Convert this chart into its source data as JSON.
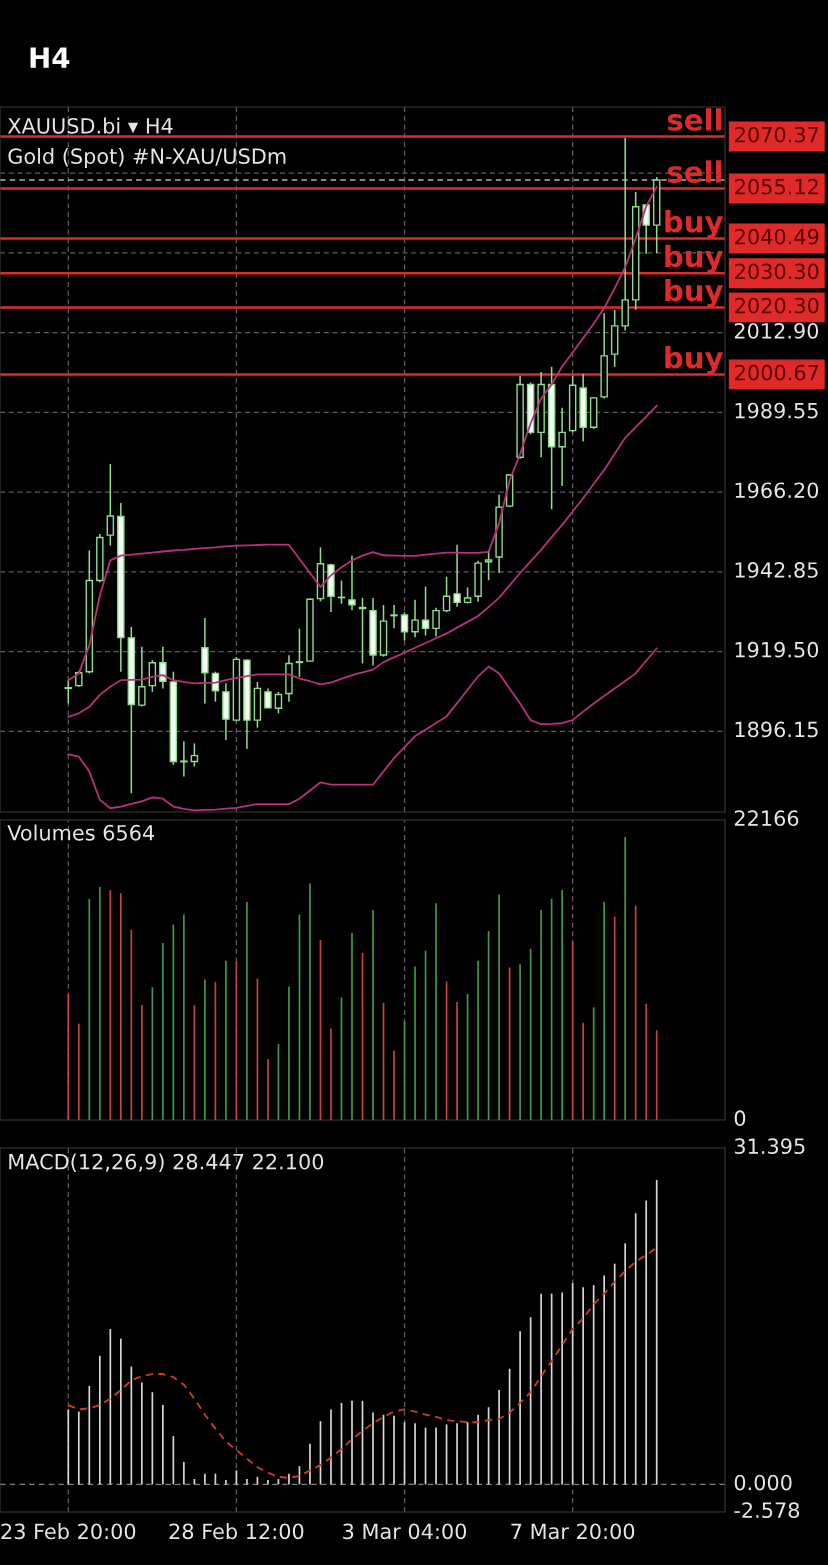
{
  "chart_data": [
    {
      "type": "candlestick",
      "title": "XAUUSD.bi ▾ H4",
      "subtitle": "Gold (Spot) #N-XAU/USDm",
      "annotations": [
        "H4",
        "2070.37",
        "2055.12",
        "2040.49",
        "2030.30",
        "2020.30",
        "2000.67"
      ],
      "categories": [
        null,
        null,
        null,
        null,
        null,
        null,
        null,
        null,
        null,
        null,
        null,
        null,
        null,
        null,
        null,
        null,
        null,
        null,
        null,
        null,
        null,
        null,
        null,
        null,
        null,
        null,
        null,
        null,
        null,
        null,
        null,
        null,
        null,
        null,
        null,
        null,
        null,
        null,
        null,
        null,
        null,
        null,
        null,
        null,
        null,
        null,
        null,
        null,
        null,
        null,
        null,
        null,
        null,
        null,
        null,
        null,
        null
      ],
      "ohlc": [
        [
          1908.7,
          1911.1,
          1904.3,
          1908.9
        ],
        [
          1909.5,
          1913.8,
          1909.2,
          1913.3
        ],
        [
          1913.6,
          1949.1,
          1913.1,
          1940.3
        ],
        [
          1940.3,
          1953.9,
          1939.8,
          1952.9
        ],
        [
          1953.6,
          1974.4,
          1950.5,
          1959.2
        ],
        [
          1959.1,
          1963.0,
          1913.6,
          1923.6
        ],
        [
          1923.5,
          1926.7,
          1878.0,
          1904.0
        ],
        [
          1903.8,
          1920.9,
          1903.4,
          1909.2
        ],
        [
          1909.5,
          1917.0,
          1907.7,
          1916.2
        ],
        [
          1916.2,
          1920.9,
          1908.7,
          1910.8
        ],
        [
          1910.6,
          1913.6,
          1886.3,
          1887.3
        ],
        [
          1887.4,
          1893.2,
          1882.9,
          1887.2
        ],
        [
          1887.3,
          1892.6,
          1885.8,
          1889.0
        ],
        [
          1920.6,
          1929.3,
          1904.3,
          1913.3
        ],
        [
          1913.1,
          1913.6,
          1904.8,
          1908.0
        ],
        [
          1907.7,
          1910.2,
          1893.6,
          1899.7
        ],
        [
          1899.4,
          1917.9,
          1899.0,
          1917.2
        ],
        [
          1917.0,
          1917.2,
          1891.0,
          1899.4
        ],
        [
          1899.4,
          1910.6,
          1897.2,
          1908.7
        ],
        [
          1907.7,
          1908.7,
          1902.9,
          1903.0
        ],
        [
          1902.9,
          1907.7,
          1901.4,
          1906.9
        ],
        [
          1907.2,
          1918.4,
          1904.8,
          1916.0
        ],
        [
          1916.3,
          1926.2,
          1912.1,
          1916.5
        ],
        [
          1916.7,
          1935.0,
          1916.5,
          1934.8
        ],
        [
          1935.0,
          1950.0,
          1934.2,
          1945.2
        ],
        [
          1944.9,
          1945.2,
          1931.1,
          1935.7
        ],
        [
          1935.3,
          1940.3,
          1933.5,
          1935.4
        ],
        [
          1934.6,
          1947.6,
          1931.6,
          1933.2
        ],
        [
          1932.4,
          1935.2,
          1916.0,
          1932.1
        ],
        [
          1931.5,
          1935.2,
          1915.4,
          1918.5
        ],
        [
          1918.5,
          1933.1,
          1918.0,
          1928.4
        ],
        [
          1930.0,
          1933.1,
          1926.3,
          1930.2
        ],
        [
          1930.2,
          1931.0,
          1922.7,
          1925.3
        ],
        [
          1925.3,
          1934.7,
          1923.7,
          1928.7
        ],
        [
          1928.7,
          1938.5,
          1924.2,
          1926.3
        ],
        [
          1926.3,
          1932.3,
          1923.9,
          1931.5
        ],
        [
          1931.5,
          1941.4,
          1931.0,
          1935.7
        ],
        [
          1936.4,
          1950.8,
          1932.6,
          1933.9
        ],
        [
          1933.9,
          1938.3,
          1933.6,
          1935.2
        ],
        [
          1935.7,
          1946.1,
          1934.1,
          1945.4
        ],
        [
          1945.8,
          1949.3,
          1940.4,
          1946.3
        ],
        [
          1947.2,
          1965.4,
          1942.5,
          1961.8
        ],
        [
          1962.1,
          1971.5,
          1961.8,
          1971.2
        ],
        [
          1976.4,
          2000.3,
          1976.0,
          1997.7
        ],
        [
          1997.7,
          1998.3,
          1983.1,
          1983.7
        ],
        [
          1983.7,
          2001.4,
          1976.4,
          1997.7
        ],
        [
          1997.7,
          2002.9,
          1961.2,
          1979.5
        ],
        [
          1979.5,
          1990.9,
          1968.0,
          1983.7
        ],
        [
          1984.2,
          2000.3,
          1983.7,
          1997.5
        ],
        [
          1996.7,
          2000.8,
          1981.0,
          1985.2
        ],
        [
          1985.2,
          1994.1,
          1984.7,
          1993.8
        ],
        [
          1994.1,
          2018.6,
          1993.6,
          2006.1
        ],
        [
          2006.6,
          2019.6,
          2002.9,
          2014.9
        ],
        [
          2014.9,
          2070.0,
          2013.5,
          2022.5
        ],
        [
          2022.5,
          2054.1,
          2019.6,
          2049.8
        ],
        [
          2050.3,
          2050.5,
          2036.0,
          2044.4
        ],
        [
          2044.4,
          2058.5,
          2036.2,
          2057.6
        ]
      ],
      "series": [
        {
          "type": "line",
          "color": "#b8317a",
          "values": [
            1911.1,
            1913.1,
            1921.3,
            1935.9,
            1946.2,
            1947.6,
            1947.9,
            1948.2,
            1948.5,
            1948.8,
            1949.1,
            1949.3,
            1949.6,
            1949.8,
            1950.0,
            1950.3,
            1950.5,
            1950.6,
            1950.7,
            1950.8,
            1950.8,
            1950.8,
            1946.6,
            1942.5,
            1938.4,
            1941.8,
            1944.2,
            1946.2,
            1947.6,
            1948.6,
            1947.7,
            1947.6,
            1947.5,
            1947.5,
            1947.9,
            1948.2,
            1948.5,
            1948.5,
            1948.4,
            1948.4,
            1948.7,
            1957.1,
            1969.6,
            1977.4,
            1986.3,
            1993.6,
            1997.7,
            2003.0,
            2007.1,
            2011.3,
            2015.5,
            2020.1,
            2025.9,
            2032.1,
            2040.5,
            2049.9,
            2055.6
          ]
        },
        {
          "type": "line",
          "color": "#b8317a",
          "values": [
            1900.4,
            1901.4,
            1903.3,
            1906.8,
            1909.2,
            1911.1,
            1911.2,
            1911.3,
            1912.1,
            1912.6,
            1911.1,
            1910.6,
            1910.2,
            1910.3,
            1910.4,
            1911.1,
            1911.8,
            1912.3,
            1912.8,
            1912.8,
            1912.8,
            1912.8,
            1911.6,
            1910.8,
            1909.9,
            1910.4,
            1911.5,
            1912.6,
            1913.4,
            1914.2,
            1916.4,
            1917.8,
            1919.2,
            1920.6,
            1922.0,
            1923.4,
            1924.8,
            1926.5,
            1928.2,
            1929.9,
            1932.5,
            1935.2,
            1938.9,
            1942.5,
            1945.9,
            1949.3,
            1953.0,
            1956.6,
            1960.5,
            1964.4,
            1968.6,
            1972.7,
            1977.4,
            1982.1,
            1985.2,
            1988.3,
            1991.5
          ]
        },
        {
          "type": "line",
          "color": "#b8317a",
          "values": [
            1889.4,
            1888.7,
            1884.4,
            1876.1,
            1873.6,
            1874.1,
            1874.9,
            1875.6,
            1876.8,
            1876.4,
            1874.1,
            1873.4,
            1873.0,
            1873.1,
            1873.2,
            1873.5,
            1873.7,
            1874.3,
            1874.8,
            1874.8,
            1874.8,
            1874.8,
            1876.4,
            1878.8,
            1881.2,
            1880.5,
            1880.5,
            1880.5,
            1880.5,
            1880.5,
            1884.4,
            1888.3,
            1891.5,
            1894.7,
            1896.6,
            1898.6,
            1900.5,
            1904.4,
            1908.3,
            1912.2,
            1915.1,
            1913.1,
            1908.7,
            1904.3,
            1899.4,
            1898.2,
            1898.3,
            1898.5,
            1899.4,
            1901.9,
            1904.3,
            1906.5,
            1908.7,
            1910.9,
            1913.1,
            1916.8,
            1920.4
          ]
        }
      ],
      "ylim": [
        1872.5,
        2079
      ],
      "yticks": [
        {
          "value": 1896.15,
          "label": "1896.15"
        },
        {
          "value": 1919.5,
          "label": "1919.50"
        },
        {
          "value": 1942.85,
          "label": "1942.85"
        },
        {
          "value": 1966.2,
          "label": "1966.20"
        },
        {
          "value": 1989.55,
          "label": "1989.55"
        },
        {
          "value": 2012.9,
          "label": "2012.90"
        },
        {
          "value": 2036.25,
          "label": null
        },
        {
          "value": 2059.6,
          "label": null
        }
      ],
      "grid": true,
      "tick_labels": "y",
      "ref_lines": [
        {
          "axis": "y",
          "value": 2070.37,
          "label": "sell",
          "color": "#e02a2a"
        },
        {
          "axis": "y",
          "value": 2055.12,
          "label": "sell",
          "color": "#e02a2a"
        },
        {
          "axis": "y",
          "value": 2040.49,
          "label": "buy",
          "color": "#e02a2a"
        },
        {
          "axis": "y",
          "value": 2030.3,
          "label": "buy",
          "color": "#e02a2a"
        },
        {
          "axis": "y",
          "value": 2020.3,
          "label": "buy",
          "color": "#e02a2a"
        },
        {
          "axis": "y",
          "value": 2000.67,
          "label": "buy",
          "color": "#e02a2a"
        },
        {
          "axis": "y",
          "value": 2057.6,
          "color": "#b0b0b0",
          "line_style": "dashed"
        }
      ]
    },
    {
      "type": "bar",
      "title": "Volumes 6564",
      "categories": [
        null,
        null,
        null,
        null,
        null,
        null,
        null,
        null,
        null,
        null,
        null,
        null,
        null,
        null,
        null,
        null,
        null,
        null,
        null,
        null,
        null,
        null,
        null,
        null,
        null,
        null,
        null,
        null,
        null,
        null,
        null,
        null,
        null,
        null,
        null,
        null,
        null,
        null,
        null,
        null,
        null,
        null,
        null,
        null,
        null,
        null,
        null,
        null,
        null,
        null,
        null,
        null,
        null,
        null,
        null,
        null,
        null
      ],
      "values": [
        9310,
        7120,
        16340,
        17220,
        16990,
        16760,
        14050,
        8490,
        9800,
        13070,
        14440,
        15190,
        8490,
        10390,
        10190,
        11760,
        11700,
        16110,
        10450,
        4480,
        5620,
        9870,
        15190,
        17480,
        13300,
        6760,
        9050,
        13820,
        12350,
        15520,
        8660,
        5130,
        7290,
        11340,
        12510,
        16010,
        10230,
        8720,
        9310,
        11760,
        13950,
        16660,
        11270,
        11500,
        12640,
        15520,
        16340,
        16990,
        13170,
        7190,
        8330,
        16110,
        15030,
        20910,
        15850,
        8590,
        6630
      ],
      "colors": [
        "#c8443a",
        "#c8443a",
        "#3f9a4a",
        "#3f9a4a",
        "#c8443a",
        "#c8443a",
        "#c8443a",
        "#c8443a",
        "#3f9a4a",
        "#3f9a4a",
        "#3f9a4a",
        "#3f9a4a",
        "#c8443a",
        "#3f9a4a",
        "#c8443a",
        "#3f9a4a",
        "#c8443a",
        "#3f9a4a",
        "#c8443a",
        "#c8443a",
        "#3f9a4a",
        "#3f9a4a",
        "#3f9a4a",
        "#3f9a4a",
        "#c8443a",
        "#c8443a",
        "#3f9a4a",
        "#3f9a4a",
        "#c8443a",
        "#3f9a4a",
        "#c8443a",
        "#c8443a",
        "#3f9a4a",
        "#3f9a4a",
        "#3f9a4a",
        "#3f9a4a",
        "#c8443a",
        "#c8443a",
        "#3f9a4a",
        "#3f9a4a",
        "#3f9a4a",
        "#3f9a4a",
        "#c8443a",
        "#3f9a4a",
        "#3f9a4a",
        "#3f9a4a",
        "#3f9a4a",
        "#3f9a4a",
        "#c8443a",
        "#c8443a",
        "#3f9a4a",
        "#3f9a4a",
        "#c8443a",
        "#3f9a4a",
        "#c8443a",
        "#c8443a",
        "#c8443a"
      ],
      "ylim": [
        0,
        22166
      ],
      "yticks": [
        0,
        22166
      ],
      "grid": "x",
      "tick_labels": "y"
    },
    {
      "type": "bar",
      "title": "MACD(12,26,9) 28.447 22.100",
      "categories": [
        "23 Feb 20:00",
        null,
        null,
        null,
        null,
        null,
        null,
        null,
        null,
        null,
        null,
        null,
        null,
        null,
        null,
        null,
        "28 Feb 12:00",
        null,
        null,
        null,
        null,
        null,
        null,
        null,
        null,
        null,
        null,
        null,
        null,
        null,
        null,
        null,
        "3 Mar 04:00",
        null,
        null,
        null,
        null,
        null,
        null,
        null,
        null,
        null,
        null,
        null,
        null,
        null,
        null,
        null,
        "7 Mar 20:00",
        null,
        null,
        null,
        null,
        null,
        null,
        null,
        null
      ],
      "series": [
        {
          "type": "bar",
          "color": "#d8d8d8",
          "values": [
            7.0,
            6.8,
            9.2,
            12.0,
            14.5,
            13.6,
            11.0,
            9.5,
            8.6,
            7.4,
            4.5,
            2.1,
            0.5,
            1.0,
            1.0,
            0.4,
            1.3,
            0.5,
            0.7,
            0.4,
            0.5,
            1.0,
            1.7,
            3.8,
            5.9,
            7.0,
            7.6,
            7.8,
            7.8,
            6.7,
            6.5,
            6.4,
            5.8,
            5.7,
            5.3,
            5.3,
            5.6,
            5.7,
            5.8,
            6.5,
            7.2,
            8.8,
            10.8,
            14.3,
            15.6,
            17.8,
            17.8,
            17.9,
            18.8,
            18.4,
            18.6,
            19.5,
            20.6,
            22.5,
            25.3,
            26.5,
            28.4
          ]
        },
        {
          "type": "line",
          "color": "#d03a2a",
          "line_style": "dashed",
          "values": [
            7.4,
            7.0,
            7.1,
            7.4,
            8.0,
            8.8,
            9.7,
            10.1,
            10.3,
            10.3,
            10.0,
            9.3,
            8.0,
            6.5,
            5.2,
            4.0,
            3.2,
            2.4,
            1.6,
            1.1,
            0.7,
            0.6,
            0.8,
            1.3,
            1.8,
            2.5,
            3.3,
            4.2,
            5.0,
            5.7,
            6.3,
            6.8,
            7.0,
            6.8,
            6.5,
            6.3,
            6.0,
            5.9,
            5.8,
            5.8,
            6.0,
            6.1,
            6.7,
            7.6,
            8.6,
            10.1,
            11.5,
            13.0,
            14.5,
            15.5,
            16.8,
            17.8,
            18.9,
            19.9,
            20.8,
            21.4,
            22.1
          ]
        }
      ],
      "ylim": [
        -2.578,
        31.395
      ],
      "yticks": [
        {
          "value": -2.578,
          "label": "-2.578"
        },
        {
          "value": 0,
          "label": "0.000"
        },
        31.395
      ],
      "grid": "x",
      "ref_lines": [
        {
          "axis": "y",
          "value": 0,
          "color": "#808080",
          "line_style": "dashed"
        }
      ]
    }
  ]
}
